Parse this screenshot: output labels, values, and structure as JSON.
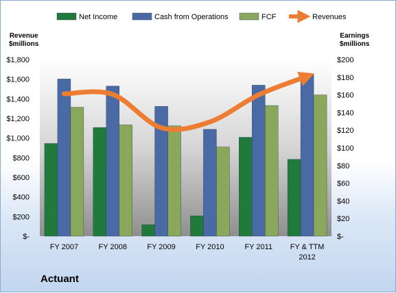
{
  "company": "Actuant",
  "chart_data": {
    "type": "bar",
    "categories": [
      "FY 2007",
      "FY 2008",
      "FY 2009",
      "FY 2010",
      "FY 2011",
      "FY & TTM\n2012"
    ],
    "left_axis": {
      "title": "Revenue\n$millions",
      "ylim": [
        0,
        1800
      ],
      "ticks": [
        "$-",
        "$200",
        "$400",
        "$600",
        "$800",
        "$1,000",
        "$1,200",
        "$1,400",
        "$1,600",
        "$1,800"
      ]
    },
    "right_axis": {
      "title": "Earnings\n$millions",
      "ylim": [
        0,
        200
      ],
      "ticks": [
        "$-",
        "$20",
        "$40",
        "$60",
        "$80",
        "$100",
        "$120",
        "$140",
        "$160",
        "$180",
        "$200"
      ]
    },
    "series": [
      {
        "name": "Net Income",
        "axis": "right",
        "kind": "bar",
        "color": "#1f7a3c",
        "values": [
          105,
          123,
          13,
          23,
          112,
          87
        ]
      },
      {
        "name": "Cash from Operations",
        "axis": "right",
        "kind": "bar",
        "color": "#4a6aa5",
        "values": [
          178,
          170,
          147,
          121,
          171,
          183
        ]
      },
      {
        "name": "FCF",
        "axis": "right",
        "kind": "bar",
        "color": "#8aa85c",
        "values": [
          146,
          126,
          125,
          101,
          148,
          160
        ]
      },
      {
        "name": "Revenues",
        "axis": "left",
        "kind": "line",
        "color": "#ec7d32",
        "values": [
          1450,
          1445,
          1105,
          1165,
          1440,
          1630
        ]
      }
    ],
    "grid": false,
    "legend_position": "top"
  }
}
